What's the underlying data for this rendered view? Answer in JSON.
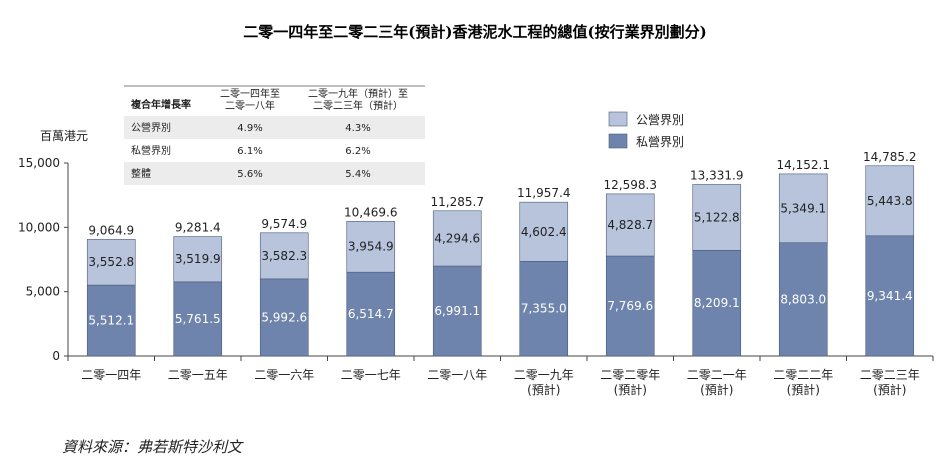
{
  "chart_data": {
    "type": "bar",
    "stacked": true,
    "title": "二零一四年至二零二三年(預計)香港泥水工程的總值(按行業界別劃分)",
    "ylabel": "百萬港元",
    "ylim": [
      0,
      15000
    ],
    "yticks": [
      "0",
      "5,000",
      "10,000",
      "15,000"
    ],
    "ytick_values": [
      0,
      5000,
      10000,
      15000
    ],
    "categories": [
      [
        "二零一四年"
      ],
      [
        "二零一五年"
      ],
      [
        "二零一六年"
      ],
      [
        "二零一七年"
      ],
      [
        "二零一八年"
      ],
      [
        "二零一九年",
        "(預計)"
      ],
      [
        "二零二零年",
        "(預計)"
      ],
      [
        "二零二一年",
        "(預計)"
      ],
      [
        "二零二二年",
        "(預計)"
      ],
      [
        "二零二三年",
        "(預計)"
      ]
    ],
    "series": [
      {
        "name": "私營界別",
        "color": "#6f84ac",
        "values": [
          5512.1,
          5761.5,
          5992.6,
          6514.7,
          6991.1,
          7355.0,
          7769.6,
          8209.1,
          8803.0,
          9341.4
        ],
        "labels": [
          "5,512.1",
          "5,761.5",
          "5,992.6",
          "6,514.7",
          "6,991.1",
          "7,355.0",
          "7,769.6",
          "8,209.1",
          "8,803.0",
          "9,341.4"
        ]
      },
      {
        "name": "公營界別",
        "color": "#b7c4dc",
        "values": [
          3552.8,
          3519.9,
          3582.3,
          3954.9,
          4294.6,
          4602.4,
          4828.7,
          5122.8,
          5349.1,
          5443.8
        ],
        "labels": [
          "3,552.8",
          "3,519.9",
          "3,582.3",
          "3,954.9",
          "4,294.6",
          "4,602.4",
          "4,828.7",
          "5,122.8",
          "5,349.1",
          "5,443.8"
        ]
      }
    ],
    "totals": [
      9064.9,
      9281.4,
      9574.9,
      10469.6,
      11285.7,
      11957.4,
      12598.3,
      13331.9,
      14152.1,
      14785.2
    ],
    "total_labels": [
      "9,064.9",
      "9,281.4",
      "9,574.9",
      "10,469.6",
      "11,285.7",
      "11,957.4",
      "12,598.3",
      "13,331.9",
      "14,152.1",
      "14,785.2"
    ],
    "legend": {
      "placement": "top-right",
      "items": [
        {
          "name": "公營界別",
          "color": "#b7c4dc"
        },
        {
          "name": "私營界別",
          "color": "#6f84ac"
        }
      ]
    },
    "cagr_table": {
      "header": [
        "複合年增長率",
        [
          "二零一四年至",
          "二零一八年"
        ],
        [
          "二零一九年（預計）至",
          "二零二三年（預計）"
        ]
      ],
      "rows": [
        [
          "公營界別",
          "4.9%",
          "4.3%"
        ],
        [
          "私營界別",
          "6.1%",
          "6.2%"
        ],
        [
          "整體",
          "5.6%",
          "5.4%"
        ]
      ]
    },
    "grid": false
  },
  "source": "資料來源：弗若斯特沙利文"
}
